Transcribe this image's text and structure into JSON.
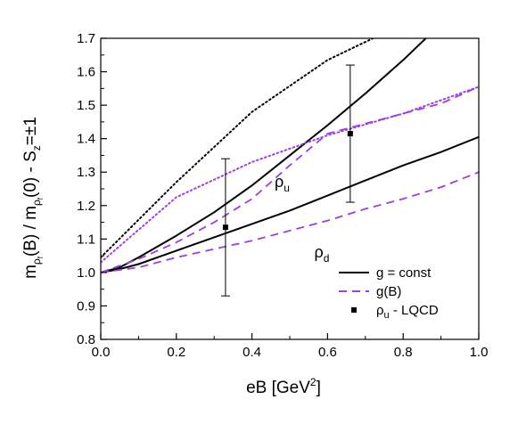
{
  "chart_data": {
    "type": "line",
    "title": "",
    "xlabel": "eB [GeV",
    "xlabel_sup": "2",
    "xlabel_tail": "]",
    "ylabel": {
      "m1": "m",
      "sub1": "ρ",
      "subsub1": "f",
      "b": "(B) / m",
      "sub2": "ρ",
      "subsub2": "f",
      "zero": "(0)  -  S",
      "subz": "z",
      "tail": "=±1"
    },
    "xlim": [
      0.0,
      1.0
    ],
    "ylim": [
      0.8,
      1.7
    ],
    "xticks": [
      "0.0",
      "0.2",
      "0.4",
      "0.6",
      "0.8",
      "1.0"
    ],
    "yticks": [
      "0.8",
      "0.9",
      "1.0",
      "1.1",
      "1.2",
      "1.3",
      "1.4",
      "1.5",
      "1.6",
      "1.7"
    ],
    "series": [
      {
        "name": "g = const",
        "curve": "ρu",
        "style": "solid",
        "color": "#000000",
        "x": [
          0.0,
          0.05,
          0.1,
          0.2,
          0.3,
          0.4,
          0.5,
          0.6,
          0.7,
          0.8,
          0.86
        ],
        "y": [
          1.0,
          1.015,
          1.045,
          1.11,
          1.18,
          1.26,
          1.35,
          1.44,
          1.535,
          1.635,
          1.7
        ]
      },
      {
        "name": "g = const",
        "curve": "ρd",
        "style": "solid",
        "color": "#000000",
        "x": [
          0.0,
          0.05,
          0.1,
          0.2,
          0.3,
          0.4,
          0.5,
          0.6,
          0.7,
          0.8,
          0.9,
          1.0
        ],
        "y": [
          1.0,
          1.01,
          1.025,
          1.065,
          1.105,
          1.145,
          1.185,
          1.23,
          1.275,
          1.32,
          1.36,
          1.405
        ]
      },
      {
        "name": "g(B)",
        "curve": "ρu",
        "style": "dashed",
        "color": "#9b3fe0",
        "x": [
          0.0,
          0.1,
          0.2,
          0.3,
          0.4,
          0.5,
          0.6,
          0.7,
          0.8,
          0.9,
          1.0
        ],
        "y": [
          1.0,
          1.04,
          1.09,
          1.15,
          1.22,
          1.32,
          1.415,
          1.445,
          1.475,
          1.505,
          1.555
        ]
      },
      {
        "name": "g(B)",
        "curve": "ρd",
        "style": "dashed",
        "color": "#9b3fe0",
        "x": [
          0.0,
          0.1,
          0.2,
          0.3,
          0.4,
          0.5,
          0.6,
          0.7,
          0.8,
          0.9,
          1.0
        ],
        "y": [
          1.0,
          1.015,
          1.045,
          1.07,
          1.095,
          1.125,
          1.155,
          1.19,
          1.22,
          1.255,
          1.3
        ]
      },
      {
        "curve": "dotted black",
        "style": "dotted",
        "color": "#000000",
        "x": [
          0.0,
          0.2,
          0.4,
          0.6,
          0.72
        ],
        "y": [
          1.045,
          1.27,
          1.48,
          1.635,
          1.7
        ]
      },
      {
        "curve": "dotted purple",
        "style": "dotted",
        "color": "#a040e0",
        "x": [
          0.0,
          0.2,
          0.4,
          0.6,
          0.8,
          1.0
        ],
        "y": [
          1.03,
          1.225,
          1.33,
          1.41,
          1.475,
          1.555
        ]
      },
      {
        "name": "ρu  -  LQCD",
        "style": "points",
        "color": "#000000",
        "points": [
          {
            "x": 0.33,
            "y": 1.135,
            "err_lo": 0.93,
            "err_hi": 1.34
          },
          {
            "x": 0.66,
            "y": 1.415,
            "err_lo": 1.21,
            "err_hi": 1.62
          }
        ]
      }
    ],
    "annotations": [
      {
        "text": "ρ",
        "sub": "u",
        "x": 0.46,
        "y": 1.255
      },
      {
        "text": "ρ",
        "sub": "d",
        "x": 0.565,
        "y": 1.045
      }
    ],
    "legend": {
      "placement": "bottom-right",
      "items": [
        {
          "label": "g = const",
          "style": "solid",
          "color": "#000000"
        },
        {
          "label": "g(B)",
          "style": "dashed",
          "color": "#9b3fe0"
        },
        {
          "label": "ρu  -  LQCD",
          "label_main": "ρ",
          "label_sub": "u",
          "label_tail": "  -  LQCD",
          "style": "square",
          "color": "#000000"
        }
      ]
    },
    "grid": false
  }
}
